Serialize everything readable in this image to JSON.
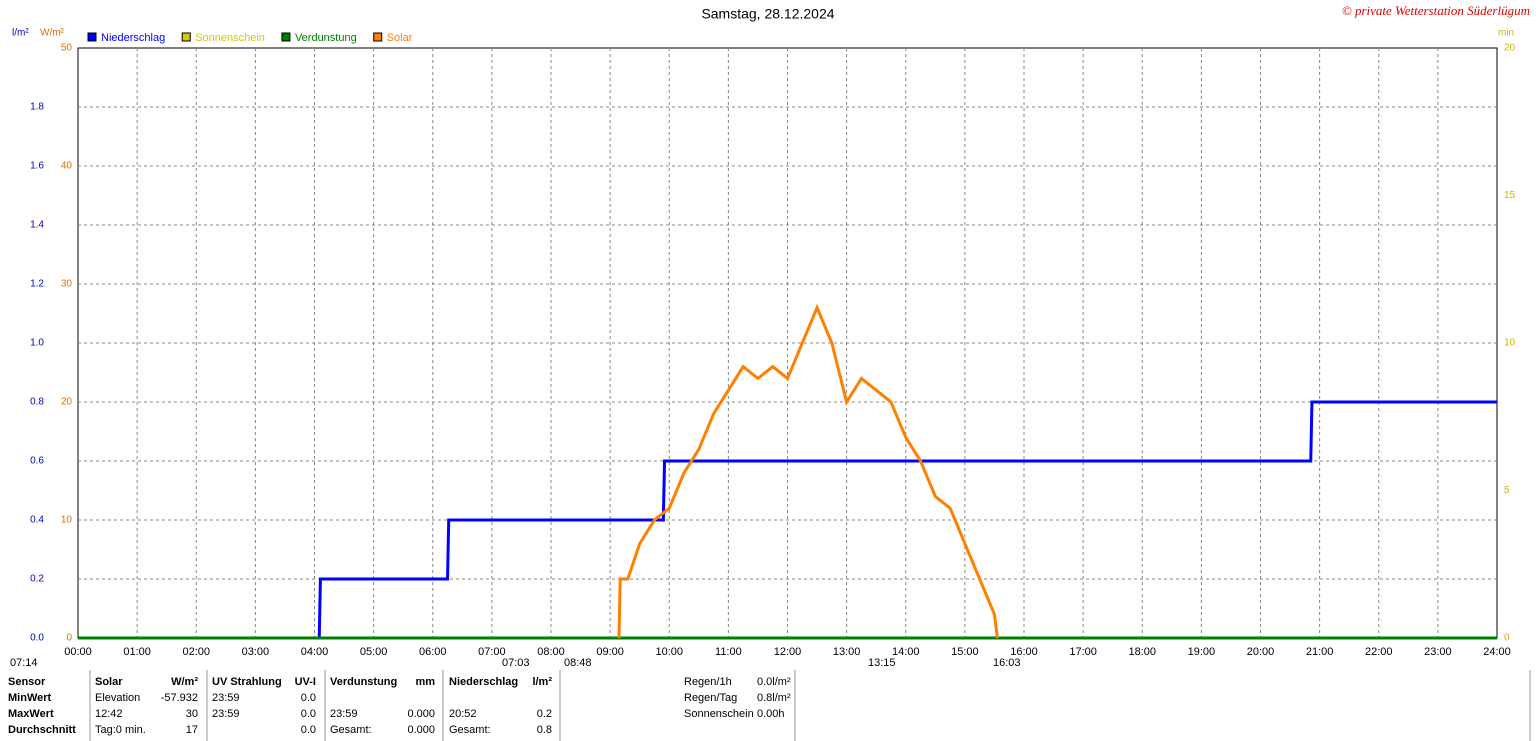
{
  "chart_data": {
    "type": "line",
    "title": "Samstag, 28.12.2024",
    "credit": "© private Wetterstation Süderlügum",
    "y_label": "W/m²",
    "y2_label": "l/m²",
    "y3_label": "min",
    "xlim": [
      0,
      24
    ],
    "xticks": [
      {
        "value": 0,
        "label": "00:00"
      },
      {
        "value": 1,
        "label": "01:00"
      },
      {
        "value": 2,
        "label": "02:00"
      },
      {
        "value": 3,
        "label": "03:00"
      },
      {
        "value": 4,
        "label": "04:00"
      },
      {
        "value": 5,
        "label": "05:00"
      },
      {
        "value": 6,
        "label": "06:00"
      },
      {
        "value": 7,
        "label": "07:00"
      },
      {
        "value": 8,
        "label": "08:00"
      },
      {
        "value": 9,
        "label": "09:00"
      },
      {
        "value": 10,
        "label": "10:00"
      },
      {
        "value": 11,
        "label": "11:00"
      },
      {
        "value": 12,
        "label": "12:00"
      },
      {
        "value": 13,
        "label": "13:00"
      },
      {
        "value": 14,
        "label": "14:00"
      },
      {
        "value": 15,
        "label": "15:00"
      },
      {
        "value": 16,
        "label": "16:00"
      },
      {
        "value": 17,
        "label": "17:00"
      },
      {
        "value": 18,
        "label": "18:00"
      },
      {
        "value": 19,
        "label": "19:00"
      },
      {
        "value": 20,
        "label": "20:00"
      },
      {
        "value": 21,
        "label": "21:00"
      },
      {
        "value": 22,
        "label": "22:00"
      },
      {
        "value": 23,
        "label": "23:00"
      },
      {
        "value": 24,
        "label": "24:00"
      }
    ],
    "ylim": [
      0,
      50
    ],
    "yticks": [
      0,
      10,
      20,
      30,
      40,
      50
    ],
    "y2lim": [
      0,
      2
    ],
    "y2ticks": [
      {
        "value": 0,
        "label": "0.0"
      },
      0.2,
      0.4,
      0.6,
      0.8,
      {
        "value": 1,
        "label": "1.0"
      },
      1.2,
      1.4,
      1.6,
      1.8
    ],
    "y3lim": [
      0,
      20
    ],
    "y3ticks": [
      0,
      5,
      10,
      15,
      20
    ],
    "grid": true,
    "series": [
      {
        "name": "Niederschlag",
        "color": "#0000ff",
        "axis": "y2",
        "x": [
          0,
          4.08,
          4.1,
          6.25,
          6.27,
          9.9,
          9.92,
          20.85,
          20.87,
          24
        ],
        "values": [
          0,
          0,
          0.2,
          0.2,
          0.4,
          0.4,
          0.6,
          0.6,
          0.8,
          0.8
        ]
      },
      {
        "name": "Sonnenschein",
        "color": "#d8c800",
        "axis": "y3",
        "x": [
          0,
          24
        ],
        "values": [
          0,
          0
        ]
      },
      {
        "name": "Verdunstung",
        "color": "#008000",
        "axis": "y3",
        "x": [
          0,
          24
        ],
        "values": [
          0,
          0
        ]
      },
      {
        "name": "Solar",
        "color": "#ff8000",
        "x": [
          9.15,
          9.17,
          9.3,
          9.5,
          9.75,
          10,
          10.25,
          10.5,
          10.75,
          11,
          11.25,
          11.5,
          11.75,
          12,
          12.25,
          12.5,
          12.75,
          13,
          13.25,
          13.5,
          13.75,
          14,
          14.25,
          14.5,
          14.75,
          15,
          15.25,
          15.5,
          15.55
        ],
        "values": [
          0,
          5,
          5,
          8,
          10,
          11,
          14,
          16,
          19,
          21,
          23,
          22,
          23,
          22,
          25,
          28,
          25,
          20,
          22,
          21,
          20,
          17,
          15,
          12,
          11,
          8,
          5,
          2,
          0
        ]
      }
    ],
    "annotations": [
      "07:14",
      "07:03",
      "08:48",
      "13:15",
      "16:03"
    ]
  },
  "stats": {
    "header": [
      "Sensor",
      "Solar",
      "W/m²",
      "UV Strahlung",
      "UV-I",
      "Verdunstung",
      "mm",
      "Niederschlag",
      "l/m²"
    ],
    "rows": [
      [
        "MinWert",
        "Elevation",
        "-57.932",
        "23:59",
        "0.0",
        "",
        "",
        "",
        ""
      ],
      [
        "MaxWert",
        "12:42",
        "30",
        "23:59",
        "0.0",
        "23:59",
        "0.000",
        "20:52",
        "0.2"
      ],
      [
        "Durchschnitt",
        "Tag:0 min.",
        "17",
        "",
        "0.0",
        "Gesamt:",
        "0.000",
        "Gesamt:",
        "0.8"
      ]
    ]
  },
  "info": [
    [
      "Regen/1h",
      "0.0l/m²"
    ],
    [
      "Regen/Tag",
      "0.8l/m²"
    ],
    [
      "Sonnenschein",
      "0.00h"
    ]
  ]
}
